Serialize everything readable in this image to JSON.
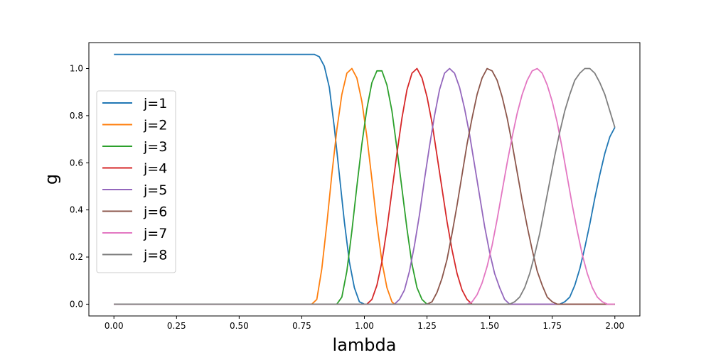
{
  "chart_data": {
    "type": "line",
    "title": "",
    "xlabel": "lambda",
    "ylabel": "g",
    "xlim": [
      -0.1,
      2.1
    ],
    "ylim": [
      -0.05,
      1.11
    ],
    "xticks": [
      0.0,
      0.25,
      0.5,
      0.75,
      1.0,
      1.25,
      1.5,
      1.75,
      2.0
    ],
    "xtick_labels": [
      "0.00",
      "0.25",
      "0.50",
      "0.75",
      "1.00",
      "1.25",
      "1.50",
      "1.75",
      "2.00"
    ],
    "yticks": [
      0.0,
      0.2,
      0.4,
      0.6,
      0.8,
      1.0
    ],
    "ytick_labels": [
      "0.0",
      "0.2",
      "0.4",
      "0.6",
      "0.8",
      "1.0"
    ],
    "grid": false,
    "legend_position": "center-left",
    "series": [
      {
        "name": "j=1",
        "color": "#1f77b4",
        "points": [
          [
            0.0,
            1.06
          ],
          [
            0.8,
            1.06
          ],
          [
            0.82,
            1.05
          ],
          [
            0.84,
            1.01
          ],
          [
            0.86,
            0.92
          ],
          [
            0.88,
            0.75
          ],
          [
            0.9,
            0.55
          ],
          [
            0.92,
            0.35
          ],
          [
            0.94,
            0.18
          ],
          [
            0.96,
            0.07
          ],
          [
            0.98,
            0.01
          ],
          [
            1.0,
            0.0
          ],
          [
            1.78,
            0.0
          ],
          [
            1.8,
            0.01
          ],
          [
            1.82,
            0.03
          ],
          [
            1.84,
            0.08
          ],
          [
            1.86,
            0.15
          ],
          [
            1.88,
            0.24
          ],
          [
            1.9,
            0.34
          ],
          [
            1.92,
            0.45
          ],
          [
            1.94,
            0.55
          ],
          [
            1.96,
            0.64
          ],
          [
            1.98,
            0.71
          ],
          [
            2.0,
            0.75
          ]
        ]
      },
      {
        "name": "j=2",
        "color": "#ff7f0e",
        "points": [
          [
            0.0,
            0.0
          ],
          [
            0.79,
            0.0
          ],
          [
            0.81,
            0.02
          ],
          [
            0.83,
            0.15
          ],
          [
            0.85,
            0.34
          ],
          [
            0.87,
            0.55
          ],
          [
            0.89,
            0.74
          ],
          [
            0.91,
            0.89
          ],
          [
            0.93,
            0.98
          ],
          [
            0.95,
            1.0
          ],
          [
            0.97,
            0.96
          ],
          [
            0.99,
            0.86
          ],
          [
            1.01,
            0.71
          ],
          [
            1.03,
            0.53
          ],
          [
            1.05,
            0.34
          ],
          [
            1.07,
            0.18
          ],
          [
            1.09,
            0.07
          ],
          [
            1.11,
            0.01
          ],
          [
            1.12,
            0.0
          ],
          [
            2.0,
            0.0
          ]
        ]
      },
      {
        "name": "j=3",
        "color": "#2ca02c",
        "points": [
          [
            0.0,
            0.0
          ],
          [
            0.89,
            0.0
          ],
          [
            0.91,
            0.03
          ],
          [
            0.93,
            0.14
          ],
          [
            0.95,
            0.31
          ],
          [
            0.97,
            0.5
          ],
          [
            0.99,
            0.68
          ],
          [
            1.01,
            0.83
          ],
          [
            1.03,
            0.94
          ],
          [
            1.05,
            0.99
          ],
          [
            1.07,
            0.99
          ],
          [
            1.09,
            0.93
          ],
          [
            1.11,
            0.82
          ],
          [
            1.13,
            0.66
          ],
          [
            1.15,
            0.49
          ],
          [
            1.17,
            0.32
          ],
          [
            1.19,
            0.17
          ],
          [
            1.21,
            0.07
          ],
          [
            1.23,
            0.02
          ],
          [
            1.25,
            0.0
          ],
          [
            2.0,
            0.0
          ]
        ]
      },
      {
        "name": "j=4",
        "color": "#d62728",
        "points": [
          [
            0.0,
            0.0
          ],
          [
            1.01,
            0.0
          ],
          [
            1.03,
            0.02
          ],
          [
            1.05,
            0.08
          ],
          [
            1.07,
            0.18
          ],
          [
            1.09,
            0.32
          ],
          [
            1.11,
            0.48
          ],
          [
            1.13,
            0.64
          ],
          [
            1.15,
            0.79
          ],
          [
            1.17,
            0.91
          ],
          [
            1.19,
            0.98
          ],
          [
            1.21,
            1.0
          ],
          [
            1.23,
            0.96
          ],
          [
            1.25,
            0.88
          ],
          [
            1.27,
            0.77
          ],
          [
            1.29,
            0.63
          ],
          [
            1.31,
            0.49
          ],
          [
            1.33,
            0.35
          ],
          [
            1.35,
            0.23
          ],
          [
            1.37,
            0.13
          ],
          [
            1.39,
            0.06
          ],
          [
            1.41,
            0.02
          ],
          [
            1.43,
            0.0
          ],
          [
            2.0,
            0.0
          ]
        ]
      },
      {
        "name": "j=5",
        "color": "#9467bd",
        "points": [
          [
            0.0,
            0.0
          ],
          [
            1.12,
            0.0
          ],
          [
            1.14,
            0.02
          ],
          [
            1.16,
            0.06
          ],
          [
            1.18,
            0.14
          ],
          [
            1.2,
            0.25
          ],
          [
            1.22,
            0.38
          ],
          [
            1.24,
            0.53
          ],
          [
            1.26,
            0.67
          ],
          [
            1.28,
            0.8
          ],
          [
            1.3,
            0.91
          ],
          [
            1.32,
            0.98
          ],
          [
            1.34,
            1.0
          ],
          [
            1.36,
            0.98
          ],
          [
            1.38,
            0.92
          ],
          [
            1.4,
            0.83
          ],
          [
            1.42,
            0.72
          ],
          [
            1.44,
            0.59
          ],
          [
            1.46,
            0.46
          ],
          [
            1.48,
            0.33
          ],
          [
            1.5,
            0.22
          ],
          [
            1.52,
            0.13
          ],
          [
            1.54,
            0.07
          ],
          [
            1.56,
            0.02
          ],
          [
            1.58,
            0.0
          ],
          [
            2.0,
            0.0
          ]
        ]
      },
      {
        "name": "j=6",
        "color": "#8c564b",
        "points": [
          [
            0.0,
            0.0
          ],
          [
            1.25,
            0.0
          ],
          [
            1.27,
            0.01
          ],
          [
            1.29,
            0.05
          ],
          [
            1.31,
            0.11
          ],
          [
            1.33,
            0.19
          ],
          [
            1.35,
            0.3
          ],
          [
            1.37,
            0.42
          ],
          [
            1.39,
            0.55
          ],
          [
            1.41,
            0.68
          ],
          [
            1.43,
            0.79
          ],
          [
            1.45,
            0.89
          ],
          [
            1.47,
            0.96
          ],
          [
            1.49,
            1.0
          ],
          [
            1.51,
            0.99
          ],
          [
            1.53,
            0.95
          ],
          [
            1.55,
            0.88
          ],
          [
            1.57,
            0.79
          ],
          [
            1.59,
            0.68
          ],
          [
            1.61,
            0.56
          ],
          [
            1.63,
            0.44
          ],
          [
            1.65,
            0.33
          ],
          [
            1.67,
            0.23
          ],
          [
            1.69,
            0.14
          ],
          [
            1.71,
            0.08
          ],
          [
            1.73,
            0.03
          ],
          [
            1.75,
            0.01
          ],
          [
            1.77,
            0.0
          ],
          [
            2.0,
            0.0
          ]
        ]
      },
      {
        "name": "j=7",
        "color": "#e377c2",
        "points": [
          [
            0.0,
            0.0
          ],
          [
            1.41,
            0.0
          ],
          [
            1.43,
            0.01
          ],
          [
            1.45,
            0.04
          ],
          [
            1.47,
            0.09
          ],
          [
            1.49,
            0.16
          ],
          [
            1.51,
            0.25
          ],
          [
            1.53,
            0.36
          ],
          [
            1.55,
            0.48
          ],
          [
            1.57,
            0.6
          ],
          [
            1.59,
            0.71
          ],
          [
            1.61,
            0.81
          ],
          [
            1.63,
            0.89
          ],
          [
            1.65,
            0.95
          ],
          [
            1.67,
            0.99
          ],
          [
            1.69,
            1.0
          ],
          [
            1.71,
            0.98
          ],
          [
            1.73,
            0.93
          ],
          [
            1.75,
            0.86
          ],
          [
            1.77,
            0.77
          ],
          [
            1.79,
            0.66
          ],
          [
            1.81,
            0.54
          ],
          [
            1.83,
            0.42
          ],
          [
            1.85,
            0.31
          ],
          [
            1.87,
            0.21
          ],
          [
            1.89,
            0.13
          ],
          [
            1.91,
            0.07
          ],
          [
            1.93,
            0.03
          ],
          [
            1.95,
            0.01
          ],
          [
            1.97,
            0.0
          ],
          [
            2.0,
            0.0
          ]
        ]
      },
      {
        "name": "j=8",
        "color": "#7f7f7f",
        "points": [
          [
            0.0,
            0.0
          ],
          [
            1.58,
            0.0
          ],
          [
            1.6,
            0.01
          ],
          [
            1.62,
            0.03
          ],
          [
            1.64,
            0.07
          ],
          [
            1.66,
            0.13
          ],
          [
            1.68,
            0.21
          ],
          [
            1.7,
            0.3
          ],
          [
            1.72,
            0.41
          ],
          [
            1.74,
            0.52
          ],
          [
            1.76,
            0.63
          ],
          [
            1.78,
            0.73
          ],
          [
            1.8,
            0.82
          ],
          [
            1.82,
            0.89
          ],
          [
            1.84,
            0.95
          ],
          [
            1.86,
            0.98
          ],
          [
            1.88,
            1.0
          ],
          [
            1.9,
            1.0
          ],
          [
            1.92,
            0.98
          ],
          [
            1.94,
            0.94
          ],
          [
            1.96,
            0.89
          ],
          [
            1.98,
            0.82
          ],
          [
            2.0,
            0.75
          ]
        ]
      }
    ]
  }
}
